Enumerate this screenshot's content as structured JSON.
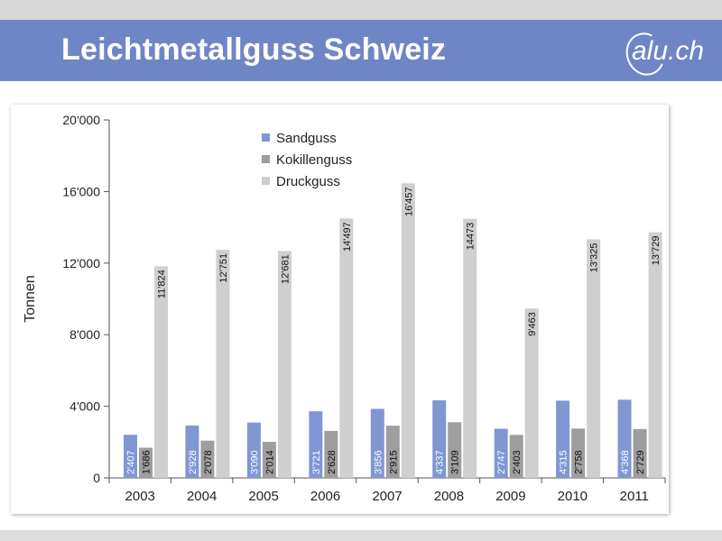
{
  "slide": {
    "title": "Leichtmetallguss Schweiz",
    "logo_text": "alu.ch"
  },
  "colors": {
    "title_bar": "#6e86c6",
    "sandguss": "#7f97d3",
    "kokillenguss": "#9e9e9e",
    "druckguss": "#cfcfcf"
  },
  "chart_data": {
    "type": "bar",
    "ylabel": "Tonnen",
    "xlabel": "",
    "ylim": [
      0,
      20000
    ],
    "yticks": [
      0,
      4000,
      8000,
      12000,
      16000,
      20000
    ],
    "ytick_labels": [
      "0",
      "4'000",
      "8'000",
      "12'000",
      "16'000",
      "20'000"
    ],
    "legend_position": "top-center",
    "categories": [
      "2003",
      "2004",
      "2005",
      "2006",
      "2007",
      "2008",
      "2009",
      "2010",
      "2011"
    ],
    "series": [
      {
        "name": "Sandguss",
        "values": [
          2407,
          2928,
          3090,
          3721,
          3856,
          4337,
          2747,
          4315,
          4368
        ],
        "labels": [
          "2'407",
          "2'928",
          "3'090",
          "3'721",
          "3'856",
          "4'337",
          "2'747",
          "4'315",
          "4'368"
        ]
      },
      {
        "name": "Kokillenguss",
        "values": [
          1686,
          2078,
          2014,
          2628,
          2915,
          3109,
          2403,
          2758,
          2729
        ],
        "labels": [
          "1'686",
          "2'078",
          "2'014",
          "2'628",
          "2'915",
          "3'109",
          "2'403",
          "2'758",
          "2'729"
        ]
      },
      {
        "name": "Druckguss",
        "values": [
          11824,
          12751,
          12681,
          14497,
          16457,
          14473,
          9463,
          13325,
          13729
        ],
        "labels": [
          "11'824",
          "12'751",
          "12'681",
          "14'497",
          "16'457",
          "14473",
          "9'463",
          "13'325",
          "13'729"
        ]
      }
    ]
  }
}
